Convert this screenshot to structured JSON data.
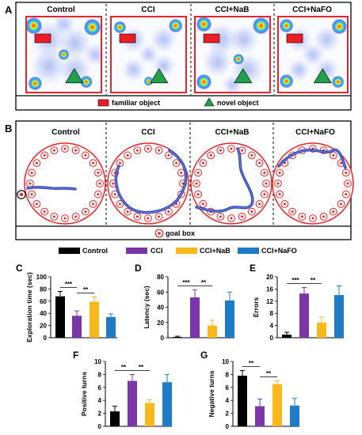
{
  "panelA": {
    "letter": "A",
    "groups": [
      "Control",
      "CCI",
      "CCI+NaB",
      "CCI+NaFO"
    ],
    "legend": {
      "familiar": "familiar object",
      "novel": "novel object"
    },
    "colors": {
      "familiar": "#ee1c24",
      "novel": "#22a04b",
      "border": "#e3262b",
      "heat_low": "#2a4fd8",
      "heat_high": "#ff2a00"
    }
  },
  "panelB": {
    "letter": "B",
    "groups": [
      "Control",
      "CCI",
      "CCI+NaB",
      "CCI+NaFO"
    ],
    "legend": {
      "goal": "goal box"
    },
    "colors": {
      "ring": "#e3262b",
      "track": "#2b3fa8"
    }
  },
  "chart_data": [
    {
      "id": "C",
      "type": "bar",
      "letter": "C",
      "title": "",
      "ylabel": "Exploration time (sec)",
      "xlabel": "",
      "ylim": [
        0,
        100
      ],
      "yticks": [
        0,
        20,
        40,
        60,
        80,
        100
      ],
      "categories": [
        "Control",
        "CCI",
        "CCI+NaB",
        "CCI+NaFO"
      ],
      "values": [
        68,
        36,
        59,
        34
      ],
      "errors": [
        8,
        8,
        8,
        5
      ],
      "significance": [
        {
          "from": 0,
          "to": 1,
          "label": "***"
        },
        {
          "from": 1,
          "to": 2,
          "label": "**"
        }
      ],
      "legend": "top"
    },
    {
      "id": "D",
      "type": "bar",
      "letter": "D",
      "title": "",
      "ylabel": "Latency (sec)",
      "xlabel": "",
      "ylim": [
        0,
        80
      ],
      "yticks": [
        0,
        20,
        40,
        60,
        80
      ],
      "categories": [
        "Control",
        "CCI",
        "CCI+NaB",
        "CCI+NaFO"
      ],
      "values": [
        1,
        53,
        16,
        49
      ],
      "errors": [
        1,
        10,
        7,
        11
      ],
      "significance": [
        {
          "from": 0,
          "to": 1,
          "label": "***"
        },
        {
          "from": 1,
          "to": 2,
          "label": "**"
        }
      ]
    },
    {
      "id": "E",
      "type": "bar",
      "letter": "E",
      "title": "",
      "ylabel": "Errors",
      "xlabel": "",
      "ylim": [
        0,
        20
      ],
      "yticks": [
        0,
        4,
        8,
        12,
        16,
        20
      ],
      "categories": [
        "Control",
        "CCI",
        "CCI+NaB",
        "CCI+NaFO"
      ],
      "values": [
        1,
        14.5,
        5,
        14
      ],
      "errors": [
        0.8,
        2,
        1.8,
        3
      ],
      "significance": [
        {
          "from": 0,
          "to": 1,
          "label": "***"
        },
        {
          "from": 1,
          "to": 2,
          "label": "**"
        }
      ]
    },
    {
      "id": "F",
      "type": "bar",
      "letter": "F",
      "title": "",
      "ylabel": "Positive turns",
      "xlabel": "",
      "ylim": [
        0,
        10
      ],
      "yticks": [
        0,
        2,
        4,
        6,
        8,
        10
      ],
      "categories": [
        "Control",
        "CCI",
        "CCI+NaB",
        "CCI+NaFO"
      ],
      "values": [
        2.3,
        7,
        3.6,
        6.8
      ],
      "errors": [
        0.8,
        1,
        0.5,
        1.2
      ],
      "significance": [
        {
          "from": 0,
          "to": 1,
          "label": "**"
        },
        {
          "from": 1,
          "to": 2,
          "label": "**"
        }
      ]
    },
    {
      "id": "G",
      "type": "bar",
      "letter": "G",
      "title": "",
      "ylabel": "Negative turns",
      "xlabel": "",
      "ylim": [
        0,
        10
      ],
      "yticks": [
        0,
        2,
        4,
        6,
        8,
        10
      ],
      "categories": [
        "Control",
        "CCI",
        "CCI+NaB",
        "CCI+NaFO"
      ],
      "values": [
        7.8,
        3.1,
        6.5,
        3.2
      ],
      "errors": [
        0.8,
        1.1,
        0.5,
        1.1
      ],
      "significance": [
        {
          "from": 0,
          "to": 1,
          "label": "**"
        },
        {
          "from": 1,
          "to": 2,
          "label": "**"
        }
      ]
    }
  ],
  "barLegend": [
    "Control",
    "CCI",
    "CCI+NaB",
    "CCI+NaFO"
  ],
  "barColors": [
    "#000000",
    "#7a36a8",
    "#f8b81c",
    "#1f7bc4"
  ]
}
